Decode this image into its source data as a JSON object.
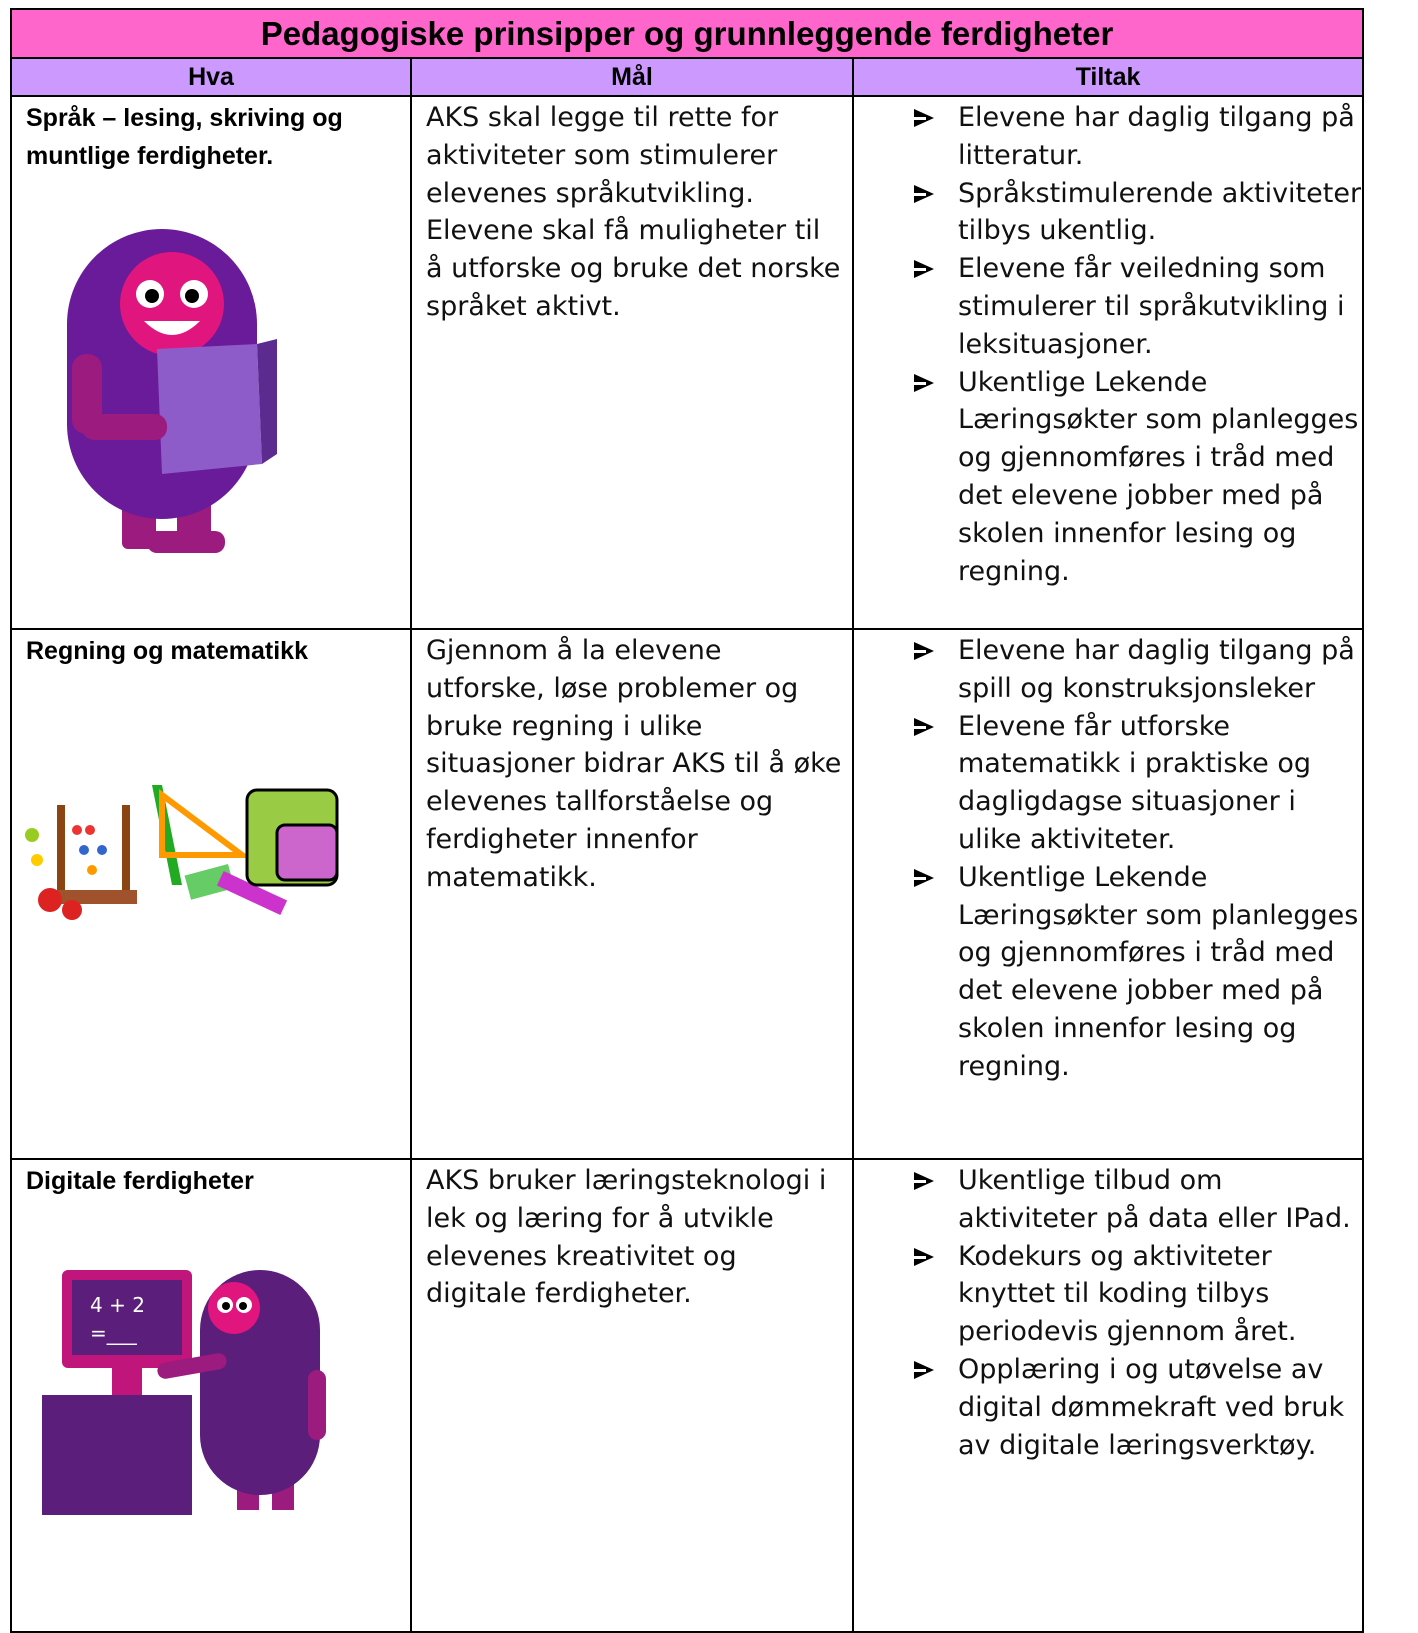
{
  "title": "Pedagogiske prinsipper og grunnleggende ferdigheter",
  "header": [
    "Hva",
    "Mål",
    "Tiltak"
  ],
  "rows": [
    {
      "hva": "Språk – lesing, skriving og muntlige ferdigheter.",
      "maal": "AKS skal legge til rette for aktiviteter som stimulerer elevenes språkutvikling. Elevene skal få muligheter til å utforske og bruke det norske språket aktivt.",
      "tiltak": [
        "Elevene har daglig tilgang på litteratur.",
        "Språkstimulerende aktiviteter tilbys ukentlig.",
        "Elevene får veiledning som stimulerer til språkutvikling i leksituasjoner.",
        "Ukentlige Lekende Læringsøkter som planlegges og gjennomføres i tråd med det elevene jobber med på skolen innenfor lesing og regning."
      ]
    },
    {
      "hva": "Regning og matematikk",
      "maal": "Gjennom å la elevene utforske, løse problemer og bruke regning i ulike situasjoner bidrar AKS til å øke elevenes tallforståelse og ferdigheter innenfor matematikk.",
      "tiltak": [
        "Elevene har daglig tilgang på spill og konstruksjonsleker",
        "Elevene får utforske matematikk i praktiske og dagligdagse situasjoner i ulike aktiviteter.",
        "Ukentlige Lekende Læringsøkter som planlegges og gjennomføres i tråd med det elevene jobber med på skolen innenfor lesing og regning."
      ]
    },
    {
      "hva": "Digitale ferdigheter",
      "maal": "AKS bruker læringsteknologi i lek og læring for å utvikle elevenes kreativitet og digitale ferdigheter.",
      "tiltak": [
        "Ukentlige tilbud om aktiviteter på data eller IPad.",
        "Kodekurs og aktiviteter knyttet til koding tilbys periodevis gjennom året.",
        "Opplæring i og utøvelse av digital dømmekraft ved bruk av digitale læringsverktøy."
      ]
    }
  ]
}
